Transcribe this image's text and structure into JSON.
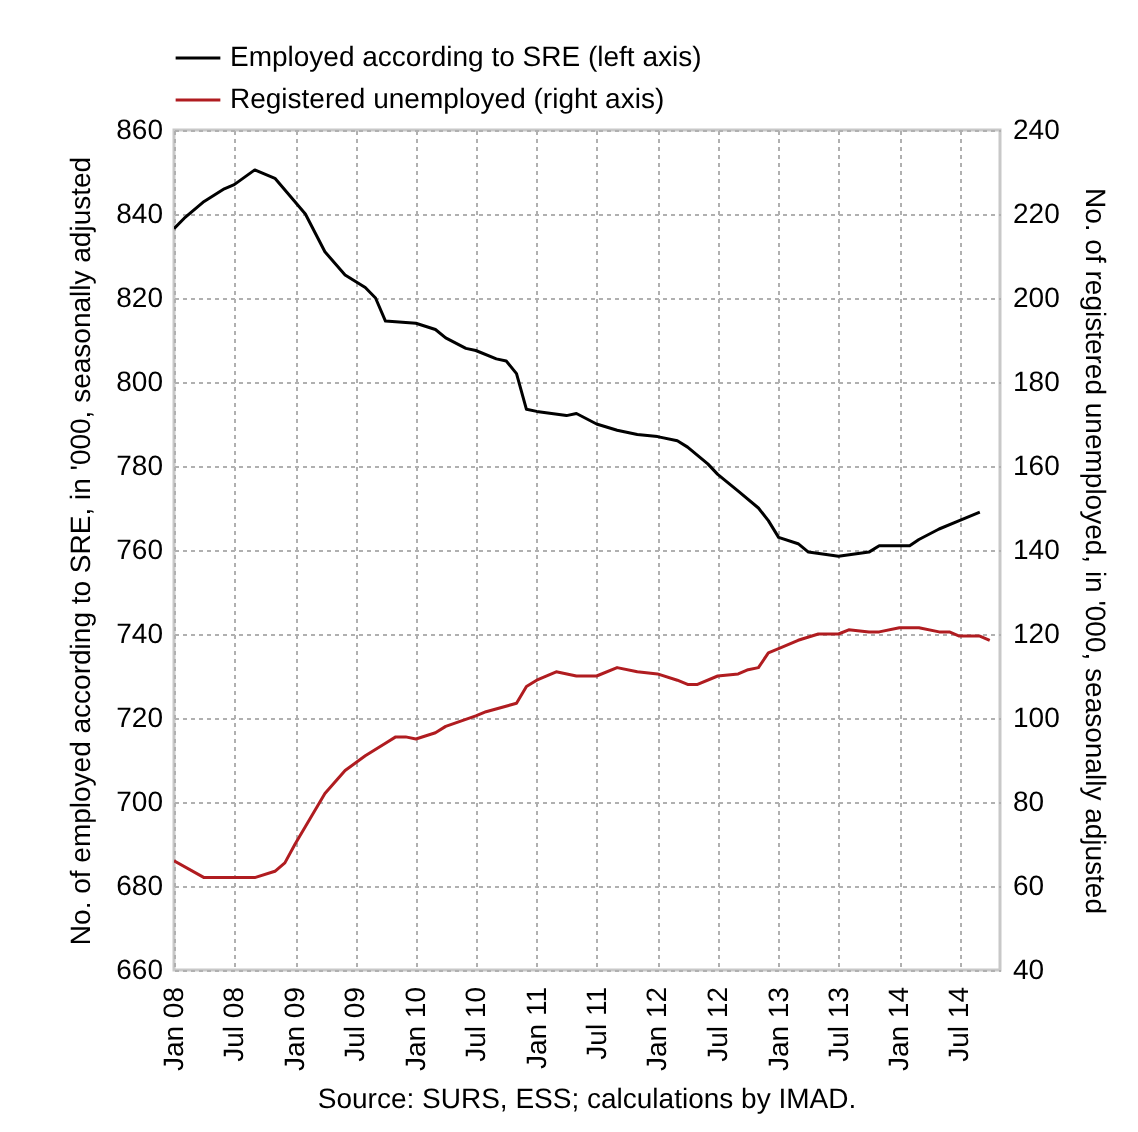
{
  "chart_data": {
    "type": "line",
    "annotations": [
      "Source: SURS, ESS; calculations by IMAD."
    ],
    "ylabel": "No. of employed according to SRE, in '000, seasonally adjusted",
    "y2label": "No. of registered unemployed, in '000, seasonally adjusted",
    "xlim": [
      "2008-01",
      "2014-11"
    ],
    "xticks": [
      {
        "value": "2008-01",
        "label": "Jan 08"
      },
      {
        "value": "2008-07",
        "label": "Jul 08"
      },
      {
        "value": "2009-01",
        "label": "Jan 09"
      },
      {
        "value": "2009-07",
        "label": "Jul 09"
      },
      {
        "value": "2010-01",
        "label": "Jan 10"
      },
      {
        "value": "2010-07",
        "label": "Jul 10"
      },
      {
        "value": "2011-01",
        "label": "Jan 11"
      },
      {
        "value": "2011-07",
        "label": "Jul 11"
      },
      {
        "value": "2012-01",
        "label": "Jan 12"
      },
      {
        "value": "2012-07",
        "label": "Jul 12"
      },
      {
        "value": "2013-01",
        "label": "Jan 13"
      },
      {
        "value": "2013-07",
        "label": "Jul 13"
      },
      {
        "value": "2014-01",
        "label": "Jan 14"
      },
      {
        "value": "2014-07",
        "label": "Jul 14"
      }
    ],
    "ylim": [
      660,
      860
    ],
    "yticks": [
      660,
      680,
      700,
      720,
      740,
      760,
      780,
      800,
      820,
      840,
      860
    ],
    "y2lim": [
      40,
      240
    ],
    "y2ticks": [
      40,
      60,
      80,
      100,
      120,
      140,
      160,
      180,
      200,
      220,
      240
    ],
    "grid": true,
    "legend": "top",
    "series": [
      {
        "name": "Employed according to SRE (left axis)",
        "color": "#000000",
        "x": [
          "2008-01",
          "2008-02",
          "2008-04",
          "2008-06",
          "2008-07",
          "2008-09",
          "2008-11",
          "2009-02",
          "2009-04",
          "2009-06",
          "2009-08",
          "2009-09",
          "2009-10",
          "2010-01",
          "2010-03",
          "2010-04",
          "2010-06",
          "2010-07",
          "2010-09",
          "2010-10",
          "2010-11",
          "2010-12",
          "2011-01",
          "2011-04",
          "2011-05",
          "2011-07",
          "2011-09",
          "2011-11",
          "2012-01",
          "2012-03",
          "2012-04",
          "2012-06",
          "2012-07",
          "2012-09",
          "2012-11",
          "2012-12",
          "2013-01",
          "2013-03",
          "2013-04",
          "2013-07",
          "2013-10",
          "2013-11",
          "2014-02",
          "2014-03",
          "2014-05",
          "2014-07",
          "2014-09"
        ],
        "values": [
          836.5,
          839,
          843,
          846,
          847,
          850.5,
          848.5,
          840,
          831,
          825.5,
          822.5,
          820,
          814.5,
          814,
          812.5,
          810.5,
          808,
          807.5,
          805.5,
          805,
          802,
          793.5,
          793,
          792,
          792.5,
          790,
          788.5,
          787.5,
          787,
          786,
          784.5,
          780.5,
          778,
          774,
          770,
          767,
          763,
          761.5,
          759.5,
          758.5,
          759.5,
          761,
          761,
          762.5,
          765,
          767,
          769
        ]
      },
      {
        "name": "Registered unemployed (right axis)",
        "color": "#b01c20",
        "axis": "y2",
        "x": [
          "2008-01",
          "2008-04",
          "2008-09",
          "2008-11",
          "2008-12",
          "2009-01",
          "2009-04",
          "2009-06",
          "2009-08",
          "2009-10",
          "2009-11",
          "2009-12",
          "2010-01",
          "2010-03",
          "2010-04",
          "2010-07",
          "2010-08",
          "2010-11",
          "2010-12",
          "2011-01",
          "2011-03",
          "2011-05",
          "2011-07",
          "2011-09",
          "2011-11",
          "2012-01",
          "2012-03",
          "2012-04",
          "2012-05",
          "2012-07",
          "2012-09",
          "2012-10",
          "2012-11",
          "2012-12",
          "2013-01",
          "2013-03",
          "2013-05",
          "2013-07",
          "2013-08",
          "2013-10",
          "2013-11",
          "2014-01",
          "2014-03",
          "2014-05",
          "2014-06",
          "2014-07",
          "2014-09",
          "2014-10"
        ],
        "values": [
          66,
          62,
          62,
          63.5,
          65.5,
          70,
          82,
          87.5,
          91,
          94,
          95.5,
          95.5,
          95,
          96.5,
          98,
          100.5,
          101.5,
          103.5,
          107.5,
          109,
          111,
          110,
          110,
          112,
          111,
          110.5,
          109,
          108,
          108,
          110,
          110.5,
          111.5,
          112,
          115.5,
          116.5,
          118.5,
          120,
          120,
          121,
          120.5,
          120.5,
          121.5,
          121.5,
          120.5,
          120.5,
          119.5,
          119.5,
          118.5
        ]
      }
    ]
  }
}
